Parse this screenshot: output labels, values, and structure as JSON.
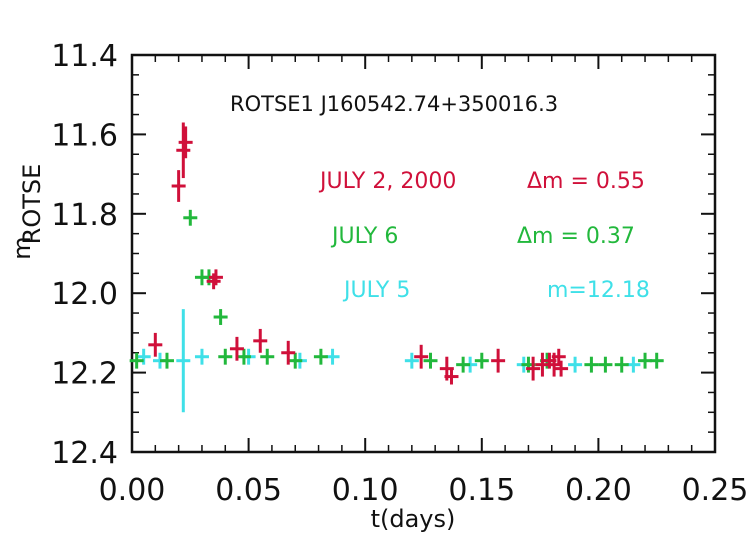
{
  "chart_data": {
    "type": "scatter",
    "title": "",
    "xlabel": "t(days)",
    "ylabel_main": "m",
    "ylabel_sub": "ROTSE",
    "object_label": "ROTSE1 J160542.74+350016.3",
    "xlim": [
      0.0,
      0.25
    ],
    "ylim": [
      12.4,
      11.4
    ],
    "y_inverted": true,
    "x_ticks": [
      "0.00",
      "0.05",
      "0.10",
      "0.15",
      "0.20",
      "0.25"
    ],
    "x_tick_values": [
      0.0,
      0.05,
      0.1,
      0.15,
      0.2,
      0.25
    ],
    "y_ticks": [
      "11.4",
      "11.6",
      "11.8",
      "12.0",
      "12.2",
      "12.4"
    ],
    "y_tick_values": [
      11.4,
      11.6,
      11.8,
      12.0,
      12.2,
      12.4
    ],
    "grid": false,
    "legend_placement": "right",
    "series": [
      {
        "name": "JULY 2, 2000",
        "annotation": "Δm = 0.55",
        "color": "#d0103a",
        "points": [
          {
            "x": 0.01,
            "y": 12.13,
            "yerr": 0.03
          },
          {
            "x": 0.02,
            "y": 11.73,
            "yerr": 0.04
          },
          {
            "x": 0.022,
            "y": 11.64,
            "yerr": 0.07
          },
          {
            "x": 0.023,
            "y": 11.62,
            "yerr": 0.04
          },
          {
            "x": 0.035,
            "y": 11.97,
            "yerr": 0.02
          },
          {
            "x": 0.036,
            "y": 11.96,
            "yerr": 0.02
          },
          {
            "x": 0.045,
            "y": 12.14,
            "yerr": 0.03
          },
          {
            "x": 0.055,
            "y": 12.12,
            "yerr": 0.03
          },
          {
            "x": 0.067,
            "y": 12.15,
            "yerr": 0.03
          },
          {
            "x": 0.124,
            "y": 12.16,
            "yerr": 0.03
          },
          {
            "x": 0.135,
            "y": 12.19,
            "yerr": 0.03
          },
          {
            "x": 0.137,
            "y": 12.21,
            "yerr": 0.02
          },
          {
            "x": 0.157,
            "y": 12.17,
            "yerr": 0.03
          },
          {
            "x": 0.172,
            "y": 12.19,
            "yerr": 0.03
          },
          {
            "x": 0.176,
            "y": 12.18,
            "yerr": 0.03
          },
          {
            "x": 0.179,
            "y": 12.17,
            "yerr": 0.02
          },
          {
            "x": 0.181,
            "y": 12.18,
            "yerr": 0.03
          },
          {
            "x": 0.183,
            "y": 12.16,
            "yerr": 0.02
          },
          {
            "x": 0.184,
            "y": 12.19,
            "yerr": 0.02
          }
        ]
      },
      {
        "name": "JULY 6",
        "annotation": "Δm = 0.37",
        "color": "#22b83c",
        "points": [
          {
            "x": 0.002,
            "y": 12.17,
            "yerr": 0.02
          },
          {
            "x": 0.015,
            "y": 12.17,
            "yerr": 0.02
          },
          {
            "x": 0.025,
            "y": 11.81,
            "yerr": 0.02
          },
          {
            "x": 0.03,
            "y": 11.96,
            "yerr": 0.02
          },
          {
            "x": 0.033,
            "y": 11.96,
            "yerr": 0.02
          },
          {
            "x": 0.038,
            "y": 12.06,
            "yerr": 0.02
          },
          {
            "x": 0.04,
            "y": 12.16,
            "yerr": 0.02
          },
          {
            "x": 0.048,
            "y": 12.16,
            "yerr": 0.02
          },
          {
            "x": 0.058,
            "y": 12.16,
            "yerr": 0.02
          },
          {
            "x": 0.07,
            "y": 12.17,
            "yerr": 0.02
          },
          {
            "x": 0.081,
            "y": 12.16,
            "yerr": 0.02
          },
          {
            "x": 0.128,
            "y": 12.17,
            "yerr": 0.02
          },
          {
            "x": 0.142,
            "y": 12.18,
            "yerr": 0.02
          },
          {
            "x": 0.15,
            "y": 12.17,
            "yerr": 0.02
          },
          {
            "x": 0.17,
            "y": 12.18,
            "yerr": 0.02
          },
          {
            "x": 0.178,
            "y": 12.17,
            "yerr": 0.02
          },
          {
            "x": 0.197,
            "y": 12.18,
            "yerr": 0.02
          },
          {
            "x": 0.203,
            "y": 12.18,
            "yerr": 0.02
          },
          {
            "x": 0.21,
            "y": 12.18,
            "yerr": 0.02
          },
          {
            "x": 0.22,
            "y": 12.17,
            "yerr": 0.02
          },
          {
            "x": 0.225,
            "y": 12.17,
            "yerr": 0.02
          }
        ]
      },
      {
        "name": "JULY 5",
        "annotation": "m=12.18",
        "color": "#3fe0e8",
        "points": [
          {
            "x": 0.005,
            "y": 12.16,
            "yerr": 0.02
          },
          {
            "x": 0.012,
            "y": 12.17,
            "yerr": 0.02
          },
          {
            "x": 0.022,
            "y": 12.17,
            "yerr": 0.13
          },
          {
            "x": 0.03,
            "y": 12.16,
            "yerr": 0.02
          },
          {
            "x": 0.05,
            "y": 12.16,
            "yerr": 0.02
          },
          {
            "x": 0.072,
            "y": 12.17,
            "yerr": 0.02
          },
          {
            "x": 0.086,
            "y": 12.16,
            "yerr": 0.02
          },
          {
            "x": 0.12,
            "y": 12.17,
            "yerr": 0.02
          },
          {
            "x": 0.145,
            "y": 12.18,
            "yerr": 0.02
          },
          {
            "x": 0.168,
            "y": 12.18,
            "yerr": 0.02
          },
          {
            "x": 0.19,
            "y": 12.18,
            "yerr": 0.02
          },
          {
            "x": 0.215,
            "y": 12.18,
            "yerr": 0.02
          }
        ]
      }
    ]
  }
}
